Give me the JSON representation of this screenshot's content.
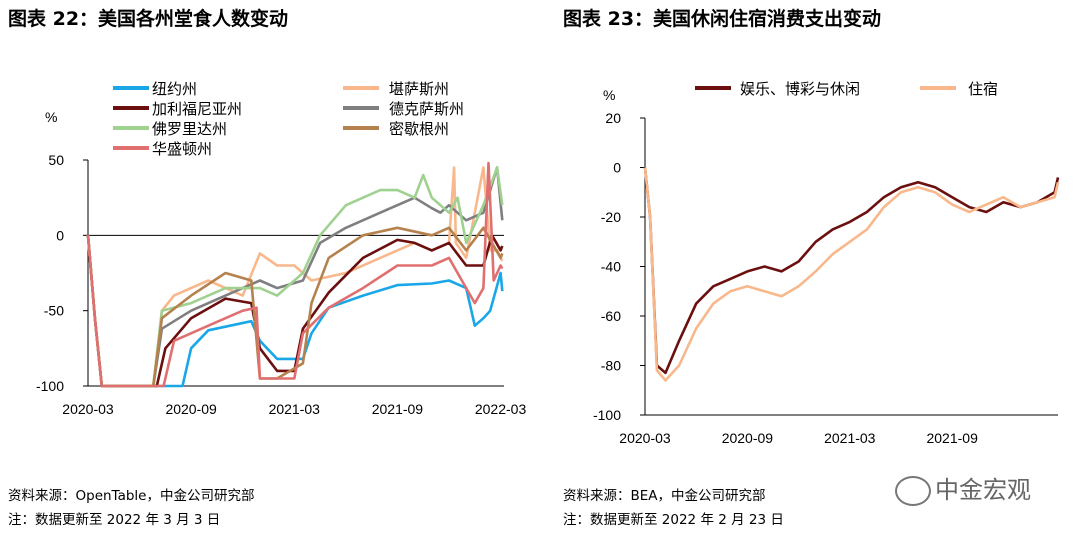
{
  "left": {
    "title": "图表 22：美国各州堂食人数变动",
    "source": "资料来源：OpenTable，中金公司研究部",
    "note": "注：数据更新至 2022 年 3 月 3 日"
  },
  "right": {
    "title": "图表 23：美国休闲住宿消费支出变动",
    "source": "资料来源：BEA，中金公司研究部",
    "note": "注：数据更新至 2022 年 2 月 23 日"
  },
  "watermark": {
    "text": "中金宏观",
    "icon": "wechat-icon"
  },
  "chart_data": [
    {
      "type": "line",
      "title": "美国各州堂食人数变动",
      "ylabel": "%",
      "ylim": [
        -100,
        50
      ],
      "yticks": [
        50,
        0,
        -50,
        -100
      ],
      "xlim": [
        0,
        24.2
      ],
      "xticks": [
        0,
        6,
        12,
        18,
        24
      ],
      "xtick_labels": [
        "2020-03",
        "2020-09",
        "2021-03",
        "2021-09",
        "2022-03"
      ],
      "x_unit": "months since 2020-03",
      "series": [
        {
          "name": "纽约州",
          "color": "#1aa7e8",
          "x": [
            0,
            0.4,
            0.8,
            5.5,
            6,
            7,
            9.5,
            10,
            11,
            12.5,
            13,
            14,
            16,
            18,
            20,
            21,
            22,
            22.5,
            23,
            23.4,
            24,
            24.1
          ],
          "y": [
            0,
            -55,
            -100,
            -100,
            -75,
            -63,
            -57,
            -70,
            -82,
            -82,
            -65,
            -48,
            -40,
            -33,
            -32,
            -30,
            -35,
            -60,
            -55,
            -50,
            -25,
            -37
          ]
        },
        {
          "name": "堪萨斯州",
          "color": "#f8b88c",
          "x": [
            0,
            0.4,
            0.8,
            3.8,
            4.3,
            5,
            7,
            9,
            10,
            11,
            11.5,
            12,
            13,
            15,
            17,
            19,
            20,
            21,
            21.3,
            21.4,
            22,
            23,
            23.4,
            23.8,
            24.1
          ],
          "y": [
            0,
            -55,
            -100,
            -100,
            -50,
            -40,
            -30,
            -40,
            -12,
            -20,
            -20,
            -20,
            -30,
            -25,
            -15,
            -5,
            -10,
            -5,
            45,
            -5,
            -15,
            45,
            -10,
            -10,
            -17
          ]
        },
        {
          "name": "加利福尼亚州",
          "color": "#6b0f0f",
          "x": [
            0,
            0.4,
            0.8,
            4,
            4.5,
            6,
            8,
            9.5,
            10,
            11,
            12,
            12.5,
            14,
            16,
            18,
            19,
            20,
            21,
            22,
            23,
            23.5,
            24,
            24.1
          ],
          "y": [
            0,
            -55,
            -100,
            -100,
            -75,
            -55,
            -42,
            -45,
            -75,
            -90,
            -90,
            -62,
            -38,
            -15,
            -3,
            -5,
            -10,
            -5,
            -20,
            -20,
            0,
            -10,
            -7
          ]
        },
        {
          "name": "德克萨斯州",
          "color": "#7f7f7f",
          "x": [
            0,
            0.4,
            0.8,
            3.8,
            4.3,
            6,
            8,
            10,
            11,
            12.5,
            13.5,
            15,
            17,
            19,
            20,
            20.5,
            21,
            22,
            23,
            23.8,
            24.1
          ],
          "y": [
            0,
            -55,
            -100,
            -100,
            -62,
            -50,
            -40,
            -30,
            -35,
            -30,
            -5,
            5,
            15,
            25,
            18,
            15,
            20,
            10,
            15,
            45,
            10
          ]
        },
        {
          "name": "佛罗里达州",
          "color": "#9fd190",
          "x": [
            0,
            0.4,
            0.8,
            3.8,
            4.3,
            6,
            8,
            10,
            11,
            12.5,
            13.5,
            15,
            16,
            17,
            18,
            19,
            19.5,
            20,
            21,
            21.5,
            22,
            23,
            23.8,
            24.1
          ],
          "y": [
            0,
            -55,
            -100,
            -100,
            -50,
            -45,
            -35,
            -35,
            -40,
            -25,
            0,
            20,
            25,
            30,
            30,
            25,
            40,
            25,
            15,
            25,
            -5,
            20,
            45,
            20
          ]
        },
        {
          "name": "密歇根州",
          "color": "#b5824e",
          "x": [
            0,
            0.4,
            0.8,
            3.8,
            4.3,
            6,
            8,
            9.5,
            10,
            11,
            12.5,
            13,
            14,
            16,
            18,
            20,
            21,
            22,
            23,
            24,
            24.1
          ],
          "y": [
            0,
            -55,
            -100,
            -100,
            -55,
            -40,
            -25,
            -30,
            -95,
            -95,
            -85,
            -45,
            -15,
            0,
            5,
            0,
            5,
            -10,
            5,
            -15,
            -12
          ]
        },
        {
          "name": "华盛顿州",
          "color": "#e07070",
          "x": [
            0,
            0.4,
            0.8,
            4.4,
            5,
            7,
            9,
            9.8,
            10,
            12,
            12.5,
            14,
            16,
            18,
            20,
            21,
            21.5,
            22,
            22.5,
            23,
            23.3,
            23.6,
            24,
            24.1
          ],
          "y": [
            0,
            -55,
            -100,
            -100,
            -70,
            -60,
            -50,
            -48,
            -95,
            -95,
            -65,
            -48,
            -35,
            -20,
            -20,
            -15,
            -25,
            -35,
            -45,
            -35,
            48,
            -30,
            -20,
            -22
          ]
        }
      ]
    },
    {
      "type": "line",
      "title": "美国休闲住宿消费支出变动",
      "ylabel": "%",
      "ylim": [
        -100,
        20
      ],
      "yticks": [
        20,
        0,
        -20,
        -40,
        -60,
        -80,
        -100
      ],
      "xlim": [
        0,
        24.2
      ],
      "xticks": [
        0,
        6,
        12,
        18
      ],
      "xtick_labels": [
        "2020-03",
        "2020-09",
        "2021-03",
        "2021-09"
      ],
      "x_unit": "months since 2020-03",
      "series": [
        {
          "name": "娱乐、博彩与休闲",
          "color": "#6b0f0f",
          "x": [
            0,
            0.3,
            0.7,
            1.2,
            2,
            3,
            4,
            5,
            6,
            7,
            8,
            9,
            10,
            11,
            12,
            13,
            14,
            15,
            16,
            17,
            18,
            19,
            20,
            21,
            22,
            23,
            24,
            24.2
          ],
          "y": [
            0,
            -20,
            -80,
            -83,
            -70,
            -55,
            -48,
            -45,
            -42,
            -40,
            -42,
            -38,
            -30,
            -25,
            -22,
            -18,
            -12,
            -8,
            -6,
            -8,
            -12,
            -16,
            -18,
            -14,
            -16,
            -14,
            -10,
            -4
          ]
        },
        {
          "name": "住宿",
          "color": "#f8b88c",
          "x": [
            0,
            0.3,
            0.7,
            1.2,
            2,
            3,
            4,
            5,
            6,
            7,
            8,
            9,
            10,
            11,
            12,
            13,
            14,
            15,
            16,
            17,
            18,
            19,
            20,
            21,
            22,
            23,
            24,
            24.2
          ],
          "y": [
            0,
            -20,
            -82,
            -86,
            -80,
            -65,
            -55,
            -50,
            -48,
            -50,
            -52,
            -48,
            -42,
            -35,
            -30,
            -25,
            -16,
            -10,
            -8,
            -10,
            -15,
            -18,
            -15,
            -12,
            -16,
            -14,
            -12,
            -6
          ]
        }
      ]
    }
  ]
}
